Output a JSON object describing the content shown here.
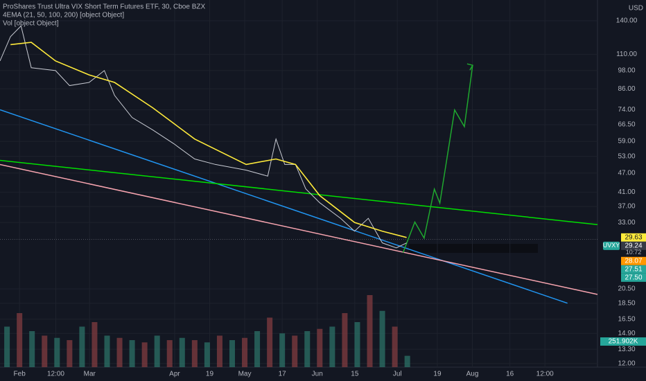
{
  "chart_data": {
    "type": "line",
    "title": "ProShares Trust Ultra VIX Short Term Futures ETF, 30, Cboe BZX",
    "indicators": [
      "4EMA (21, 50, 100, 200) [object Object]",
      "Vol [object Object]"
    ],
    "currency": "USD",
    "log_scale": true,
    "grid": true,
    "xlim": [
      -7.8,
      231
    ],
    "xticks": [
      {
        "value": 0,
        "label": "Feb"
      },
      {
        "value": 14.5,
        "label": "12:00"
      },
      {
        "value": 28,
        "label": "Mar"
      },
      {
        "value": 62,
        "label": "Apr"
      },
      {
        "value": 76,
        "label": "19"
      },
      {
        "value": 90,
        "label": "May"
      },
      {
        "value": 105,
        "label": "17"
      },
      {
        "value": 119,
        "label": "Jun"
      },
      {
        "value": 134,
        "label": "15"
      },
      {
        "value": 151,
        "label": "Jul"
      },
      {
        "value": 167,
        "label": "19"
      },
      {
        "value": 181,
        "label": "Aug"
      },
      {
        "value": 196,
        "label": "16"
      },
      {
        "value": 210,
        "label": "12:00"
      }
    ],
    "ylim": [
      11.7,
      162.5
    ],
    "yticks": [
      {
        "value": 12,
        "label": "12.00"
      },
      {
        "value": 13.3,
        "label": "13.30"
      },
      {
        "value": 14.9,
        "label": "14.90"
      },
      {
        "value": 16.5,
        "label": "16.50"
      },
      {
        "value": 18.5,
        "label": "18.50"
      },
      {
        "value": 20.5,
        "label": "20.50"
      },
      {
        "value": 33,
        "label": "33.00"
      },
      {
        "value": 37,
        "label": "37.00"
      },
      {
        "value": 41,
        "label": "41.00"
      },
      {
        "value": 47,
        "label": "47.00"
      },
      {
        "value": 53,
        "label": "53.00"
      },
      {
        "value": 59,
        "label": "59.00"
      },
      {
        "value": 66.5,
        "label": "66.50"
      },
      {
        "value": 74,
        "label": "74.00"
      },
      {
        "value": 86,
        "label": "86.00"
      },
      {
        "value": 98,
        "label": "98.00"
      },
      {
        "value": 110,
        "label": "110.00"
      },
      {
        "value": 140,
        "label": "140.00"
      }
    ],
    "series": [
      {
        "name": "UVXY",
        "color": "#c9ccd4",
        "x": [
          -7.8,
          -3.6,
          0.6,
          4.7,
          14.4,
          20,
          27.8,
          33.9,
          38,
          45,
          53.3,
          61.7,
          70,
          78.3,
          90.6,
          99.2,
          102.5,
          106,
          110.3,
          114.4,
          120,
          128.3,
          133.9,
          139.4,
          145,
          150.6,
          154.7
        ],
        "values": [
          105,
          125,
          135,
          100,
          98,
          88,
          90,
          98,
          82,
          70,
          64,
          58,
          52,
          50,
          48,
          46,
          60,
          50,
          50,
          42,
          38,
          34,
          31,
          34,
          28.5,
          27.5,
          28.5
        ]
      },
      {
        "color": "#ffeb3b",
        "x": [
          -3.6,
          4.7,
          14.4,
          27.8,
          38,
          53.3,
          70,
          90.6,
          102.5,
          110.3,
          120,
          133.9,
          145,
          154.7
        ],
        "values": [
          118,
          120,
          105,
          95,
          90,
          75,
          60,
          50,
          52,
          50,
          40,
          33,
          31,
          29.63
        ]
      }
    ],
    "trendlines": [
      {
        "color": "#2196f3",
        "x": [
          -7.8,
          219
        ],
        "values": [
          74,
          18.5
        ]
      },
      {
        "color": "#00e000",
        "x": [
          -7.8,
          231
        ],
        "values": [
          51.5,
          32.5
        ]
      },
      {
        "color": "#f8a5b0",
        "x": [
          -7.8,
          231
        ],
        "values": [
          50,
          19.7
        ]
      },
      {
        "color": "#1fa82f",
        "x": [
          153.3,
          158,
          161.7,
          165.8,
          168,
          173.9,
          177.8,
          181.1
        ],
        "values": [
          26.6,
          33.1,
          29.5,
          41.9,
          37.9,
          73.9,
          65.6,
          101.8
        ]
      }
    ],
    "volume": {
      "ylim": [
        0,
        2000000
      ],
      "x": [
        -5,
        0,
        5,
        10,
        15,
        20,
        25,
        30,
        35,
        40,
        45,
        50,
        55,
        60,
        65,
        70,
        75,
        80,
        85,
        90,
        95,
        100,
        105,
        110,
        115,
        120,
        125,
        130,
        135,
        140,
        145,
        150,
        155
      ],
      "values": [
        900000,
        1200000,
        800000,
        700000,
        650000,
        600000,
        900000,
        1000000,
        700000,
        650000,
        600000,
        550000,
        700000,
        600000,
        650000,
        600000,
        550000,
        700000,
        600000,
        650000,
        800000,
        1100000,
        750000,
        700000,
        800000,
        850000,
        900000,
        1200000,
        1000000,
        1600000,
        1250000,
        900000,
        251902
      ],
      "value_labels": [
        "251.902K"
      ]
    },
    "price_labels": [
      {
        "value": 29.63,
        "label": "29.63",
        "color": "#ffeb3b"
      },
      {
        "value": 29.24,
        "label": "29.24",
        "color": "#363a45"
      },
      {
        "value": 28.07,
        "label": "28.07",
        "color": "#ff9800"
      },
      {
        "value": 27.51,
        "label": "27.51",
        "color": "#26a69a"
      },
      {
        "value": 27.5,
        "label": "27.50",
        "color": "#26a69a"
      }
    ],
    "countdown": "10:72"
  }
}
